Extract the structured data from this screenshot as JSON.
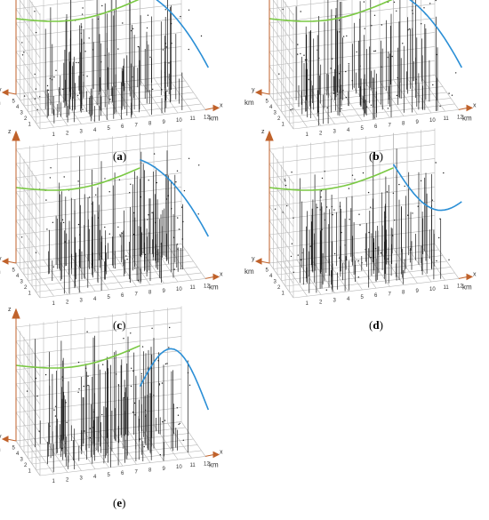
{
  "figure": {
    "panels": [
      {
        "id": "a",
        "label": "(a)",
        "label_letter": "a",
        "curve": "blue-arc"
      },
      {
        "id": "b",
        "label": "(b)",
        "label_letter": "b",
        "curve": "blue-arc"
      },
      {
        "id": "c",
        "label": "(c)",
        "label_letter": "c",
        "curve": "blue-arc"
      },
      {
        "id": "d",
        "label": "(d)",
        "label_letter": "d",
        "curve": "blue-valley"
      },
      {
        "id": "e",
        "label": "(e)",
        "label_letter": "e",
        "curve": "blue-peak"
      }
    ],
    "axis": {
      "x_label": "x",
      "y_label": "y",
      "z_label": "z",
      "unit": "km",
      "x_ticks": [
        "1",
        "2",
        "3",
        "4",
        "5",
        "6",
        "7",
        "8",
        "9",
        "10",
        "11",
        "12"
      ],
      "y_ticks": [
        "1",
        "2",
        "3",
        "4",
        "5"
      ]
    },
    "colors": {
      "grid": "#b8b8b8",
      "bars": "#1a1a1a",
      "axis_arrow": "#c0622b",
      "curve_green": "#7ac943",
      "curve_blue": "#2b8fd6",
      "points": "#222222"
    }
  }
}
